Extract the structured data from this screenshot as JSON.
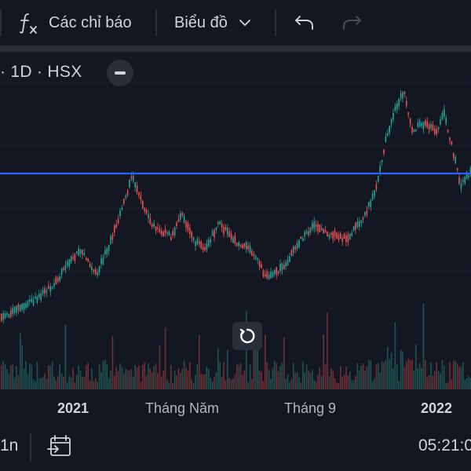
{
  "toolbar": {
    "indicators_label": "Các chỉ báo",
    "chart_type_label": "Biểu đồ"
  },
  "legend": {
    "text": "· 1D · HSX"
  },
  "time_axis": {
    "labels": [
      "2021",
      "Tháng Năm",
      "Tháng 9",
      "2022"
    ]
  },
  "bottom_bar": {
    "range_label": "1n",
    "clock": "05:21:0"
  },
  "colors": {
    "up": "#26a69a",
    "down": "#ef5350",
    "hline": "#2962ff",
    "background": "#131722"
  },
  "icons": [
    "fx-icon",
    "chevron-down-icon",
    "undo-icon",
    "redo-icon",
    "minus-icon",
    "reset-icon",
    "calendar-goto-icon"
  ]
}
